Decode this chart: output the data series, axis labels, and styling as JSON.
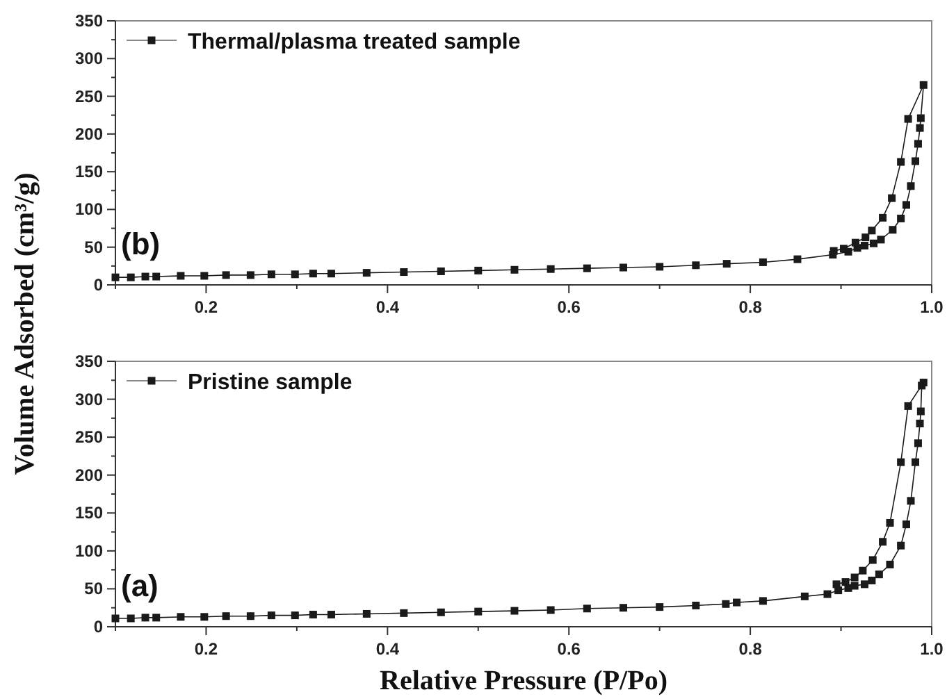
{
  "chart_data": [
    {
      "type": "line",
      "ylabel": "Volume Adsorbed (cm³/g)",
      "annotations": [
        "(b)"
      ],
      "legend": "top left",
      "marker": "square",
      "line_style": "solid",
      "xlim": [
        0.1,
        1.0
      ],
      "ylim": [
        0,
        350
      ],
      "xticks": [
        {
          "value": 0.1,
          "label": null
        },
        0.2,
        {
          "value": 0.3,
          "label": null
        },
        0.4,
        {
          "value": 0.5,
          "label": null
        },
        0.6,
        {
          "value": 0.7,
          "label": null
        },
        0.8,
        {
          "value": 0.9,
          "label": null
        },
        "1.0"
      ],
      "yticks": [
        0,
        {
          "value": 25,
          "label": null
        },
        50,
        {
          "value": 75,
          "label": null
        },
        100,
        {
          "value": 125,
          "label": null
        },
        150,
        {
          "value": 175,
          "label": null
        },
        200,
        {
          "value": 225,
          "label": null
        },
        250,
        {
          "value": 275,
          "label": null
        },
        300,
        {
          "value": 325,
          "label": null
        },
        350
      ],
      "series": [
        {
          "name": "Thermal/plasma treated sample",
          "color": "#1a1a1a",
          "x": [
            0.1,
            0.117,
            0.133,
            0.145,
            0.172,
            0.198,
            0.222,
            0.249,
            0.272,
            0.298,
            0.318,
            0.338,
            0.377,
            0.418,
            0.459,
            0.5,
            0.54,
            0.58,
            0.62,
            0.66,
            0.7,
            0.74,
            0.774,
            0.814,
            0.852,
            0.891,
            0.908,
            0.918,
            0.926,
            0.936,
            0.944,
            0.957,
            0.966,
            0.972,
            0.977,
            0.982,
            0.985,
            0.987,
            0.988,
            0.991,
            0.974,
            0.966,
            0.956,
            0.946,
            0.934,
            0.927,
            0.916,
            0.903,
            0.892
          ],
          "values": [
            10,
            10,
            11,
            11,
            12,
            12,
            13,
            13,
            14,
            14,
            15,
            15,
            16,
            17,
            18,
            19,
            20,
            21,
            22,
            23,
            24,
            26,
            28,
            30,
            34,
            40,
            44,
            49,
            52,
            55,
            60,
            73,
            88,
            106,
            131,
            164,
            187,
            208,
            221,
            265,
            220,
            163,
            115,
            89,
            72,
            63,
            56,
            48,
            45
          ]
        }
      ]
    },
    {
      "type": "line",
      "xlabel": "Relative Pressure (P/Po)",
      "annotations": [
        "(a)"
      ],
      "legend": "top left",
      "marker": "square",
      "line_style": "solid",
      "xlim": [
        0.1,
        1.0
      ],
      "ylim": [
        0,
        350
      ],
      "xticks": [
        {
          "value": 0.1,
          "label": null
        },
        0.2,
        {
          "value": 0.3,
          "label": null
        },
        0.4,
        {
          "value": 0.5,
          "label": null
        },
        0.6,
        {
          "value": 0.7,
          "label": null
        },
        0.8,
        {
          "value": 0.9,
          "label": null
        },
        "1.0"
      ],
      "yticks": [
        0,
        {
          "value": 25,
          "label": null
        },
        50,
        {
          "value": 75,
          "label": null
        },
        100,
        {
          "value": 125,
          "label": null
        },
        150,
        {
          "value": 175,
          "label": null
        },
        200,
        {
          "value": 225,
          "label": null
        },
        250,
        {
          "value": 275,
          "label": null
        },
        300,
        {
          "value": 325,
          "label": null
        },
        350
      ],
      "series": [
        {
          "name": "Pristine sample",
          "color": "#1a1a1a",
          "x": [
            0.1,
            0.117,
            0.133,
            0.145,
            0.172,
            0.198,
            0.222,
            0.249,
            0.272,
            0.298,
            0.318,
            0.338,
            0.377,
            0.418,
            0.459,
            0.5,
            0.54,
            0.58,
            0.62,
            0.66,
            0.7,
            0.74,
            0.773,
            0.785,
            0.814,
            0.86,
            0.885,
            0.897,
            0.908,
            0.915,
            0.926,
            0.934,
            0.942,
            0.954,
            0.966,
            0.972,
            0.977,
            0.982,
            0.985,
            0.987,
            0.988,
            0.989,
            0.991,
            0.974,
            0.966,
            0.954,
            0.946,
            0.935,
            0.924,
            0.915,
            0.905,
            0.895
          ],
          "values": [
            11,
            11,
            12,
            12,
            13,
            13,
            14,
            14,
            15,
            15,
            16,
            16,
            17,
            18,
            19,
            20,
            21,
            22,
            24,
            25,
            26,
            28,
            30,
            32,
            34,
            40,
            43,
            48,
            51,
            54,
            56,
            61,
            69,
            82,
            107,
            135,
            166,
            217,
            242,
            268,
            284,
            318,
            322,
            291,
            217,
            137,
            112,
            88,
            74,
            65,
            59,
            56
          ]
        }
      ]
    }
  ]
}
